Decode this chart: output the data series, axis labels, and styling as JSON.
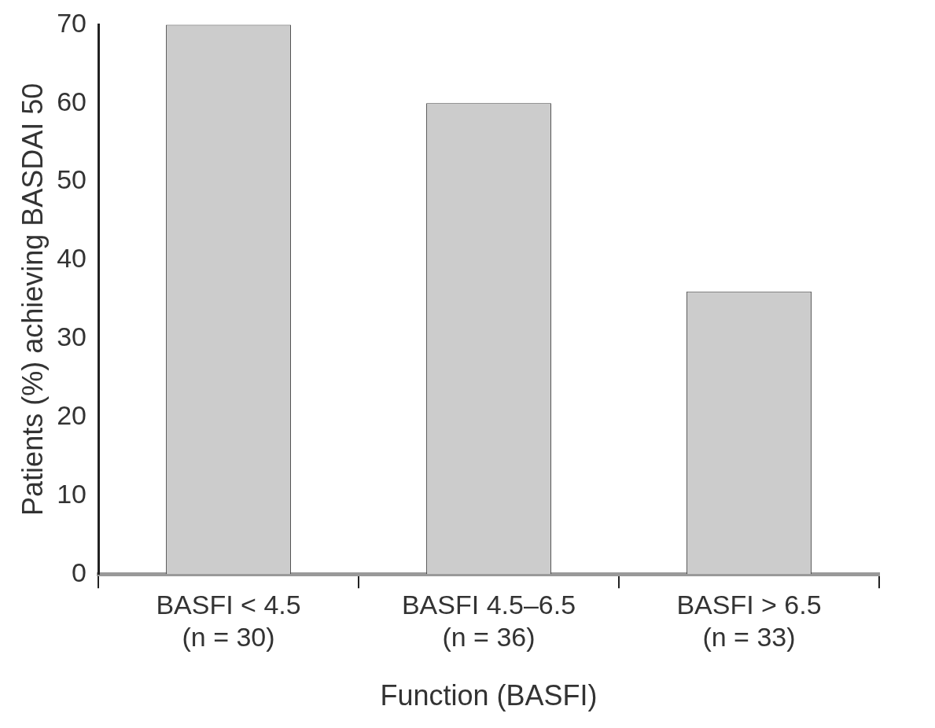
{
  "chart_data": {
    "type": "bar",
    "xlabel": "Function (BASFI)",
    "ylabel": "Patients (%) achieving BASDAI 50",
    "categories": [
      "BASFI < 4.5\n(n = 30)",
      "BASFI 4.5–6.5\n(n = 36)",
      "BASFI > 6.5\n(n = 33)"
    ],
    "values": [
      70,
      60,
      36
    ],
    "color": "#cccccc",
    "ylim": [
      0,
      70
    ],
    "yticks": [
      0,
      10,
      20,
      30,
      40,
      50,
      60,
      70
    ]
  }
}
